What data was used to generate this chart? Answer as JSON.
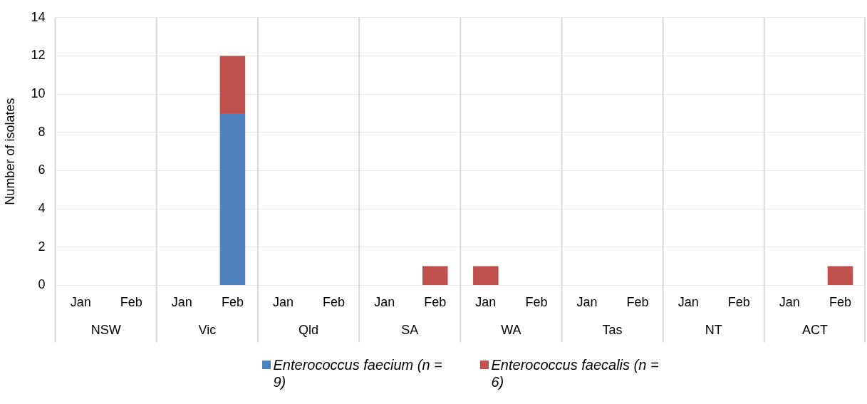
{
  "chart_data": {
    "type": "bar",
    "ylabel": "Number of isolates",
    "stacked": true,
    "grid": "y",
    "legend": "bottom",
    "categories": [
      "Jan",
      "Feb",
      "Jan",
      "Feb",
      "Jan",
      "Feb",
      "Jan",
      "Feb",
      "Jan",
      "Feb",
      "Jan",
      "Feb",
      "Jan",
      "Feb",
      "Jan",
      "Feb"
    ],
    "series": [
      {
        "name": "Enterococcus faecium (n = 9)",
        "color": "#4f81bd",
        "values": [
          0,
          0,
          0,
          9,
          0,
          0,
          0,
          0,
          0,
          0,
          0,
          0,
          0,
          0,
          0,
          0
        ]
      },
      {
        "name": "Enterococcus faecalis (n = 6)",
        "color": "#c0504d",
        "values": [
          0,
          0,
          0,
          3,
          0,
          0,
          0,
          1,
          1,
          0,
          0,
          0,
          0,
          0,
          0,
          1
        ]
      }
    ],
    "ylim": [
      0,
      14
    ],
    "yticks": [
      0,
      2,
      4,
      6,
      8,
      10,
      12,
      14
    ],
    "annotations": [
      "NSW",
      "Vic",
      "Qld",
      "SA",
      "WA",
      "Tas",
      "NT",
      "ACT"
    ]
  }
}
